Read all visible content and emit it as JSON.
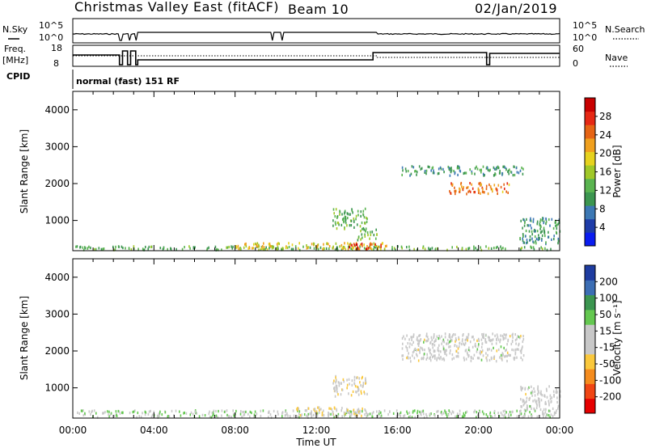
{
  "header": {
    "title": "Christmas Valley East (fitACF)",
    "beam": "Beam 10",
    "date": "02/Jan/2019"
  },
  "strips": {
    "nsky_label": "N.Sky",
    "nsearch_label": "N.Search",
    "nsky_ticks": [
      "10^5",
      "10^0"
    ],
    "nsearch_ticks": [
      "10^5",
      "10^0"
    ],
    "freq_label_1": "Freq.",
    "freq_label_2": "[MHz]",
    "freq_ticks": [
      "18",
      "8"
    ],
    "nave_label": "Nave",
    "nave_ticks": [
      "60",
      "0"
    ],
    "cpid_label": "CPID",
    "cpid_value": "normal (fast) 151 RF"
  },
  "colors": {
    "power": [
      "#0a1cf0",
      "#1e3ca8",
      "#3c78b4",
      "#3c9650",
      "#5ab450",
      "#a0c828",
      "#e6d21e",
      "#f0a01e",
      "#e66414",
      "#e62814",
      "#c80000"
    ],
    "velocity": [
      "#e60000",
      "#f04614",
      "#f58c1e",
      "#fac83c",
      "#c8c8c8",
      "#c8c8c8",
      "#64c850",
      "#3c9650",
      "#3c6eb4",
      "#1e3ca0"
    ]
  },
  "chart_data": [
    {
      "type": "heatmap",
      "panel": "power",
      "x_tick_labels": [
        "00:00",
        "04:00",
        "08:00",
        "12:00",
        "16:00",
        "20:00",
        "00:00"
      ],
      "x_range_hours": [
        0,
        24
      ],
      "ylabel": "Slant Range [km]",
      "y_ticks": [
        1000,
        2000,
        3000,
        4000
      ],
      "ylim": [
        180,
        4500
      ],
      "colorbar_label": "Power [dB]",
      "colorbar_ticks": [
        "4",
        "8",
        "12",
        "16",
        "20",
        "24",
        "28"
      ],
      "colorbar_range": [
        0,
        30
      ],
      "echo_regions": [
        {
          "x": [
            0.0,
            23.9
          ],
          "range": [
            230,
            330
          ],
          "value": 12
        },
        {
          "x": [
            8.0,
            15.5
          ],
          "range": [
            240,
            420
          ],
          "value": 18
        },
        {
          "x": [
            13.5,
            15.2
          ],
          "range": [
            250,
            400
          ],
          "value": 26
        },
        {
          "x": [
            12.8,
            14.5
          ],
          "range": [
            800,
            1350
          ],
          "value": 12
        },
        {
          "x": [
            14.0,
            15.0
          ],
          "range": [
            500,
            800
          ],
          "value": 12
        },
        {
          "x": [
            16.2,
            22.2
          ],
          "range": [
            2250,
            2500
          ],
          "value": 10
        },
        {
          "x": [
            18.5,
            21.5
          ],
          "range": [
            1750,
            2050
          ],
          "value": 22
        },
        {
          "x": [
            22.0,
            24.0
          ],
          "range": [
            400,
            1100
          ],
          "value": 9
        }
      ]
    },
    {
      "type": "heatmap",
      "panel": "velocity",
      "x_tick_labels": [
        "00:00",
        "04:00",
        "08:00",
        "12:00",
        "16:00",
        "20:00",
        "00:00"
      ],
      "x_range_hours": [
        0,
        24
      ],
      "xlabel": "Time UT",
      "ylabel": "Slant Range [km]",
      "y_ticks": [
        1000,
        2000,
        3000,
        4000
      ],
      "ylim": [
        180,
        4500
      ],
      "colorbar_label": "Velocity [m s⁻¹]",
      "colorbar_ticks": [
        "-200",
        "-100",
        "-50",
        "-15",
        "15",
        "50",
        "100",
        "200"
      ],
      "colorbar_range": [
        -250,
        250
      ],
      "echo_regions": [
        {
          "x": [
            0.0,
            23.9
          ],
          "range": [
            230,
            420
          ],
          "value": 35
        },
        {
          "x": [
            11.0,
            14.5
          ],
          "range": [
            250,
            500
          ],
          "value": -30
        },
        {
          "x": [
            12.8,
            14.5
          ],
          "range": [
            800,
            1350
          ],
          "value": -40
        },
        {
          "x": [
            16.2,
            22.2
          ],
          "range": [
            1750,
            2500
          ],
          "value": 0
        },
        {
          "x": [
            22.0,
            24.0
          ],
          "range": [
            400,
            1100
          ],
          "value": 0
        }
      ]
    }
  ]
}
